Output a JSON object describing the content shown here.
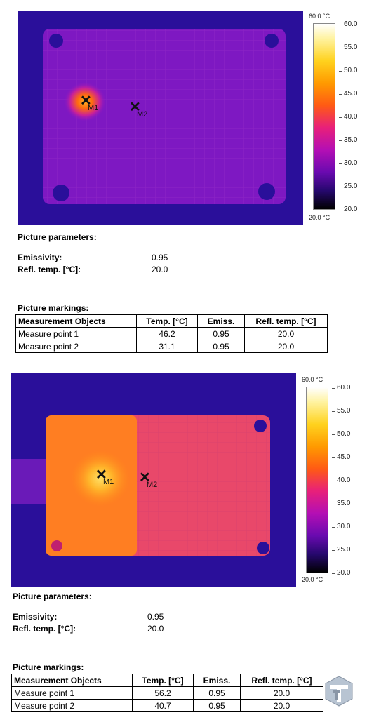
{
  "reports": [
    {
      "scale": {
        "top_label": "60.0 °C",
        "bottom_label": "20.0 °C",
        "ticks": [
          "60.0",
          "55.0",
          "50.0",
          "45.0",
          "40.0",
          "35.0",
          "30.0",
          "25.0",
          "20.0"
        ]
      },
      "markers": [
        {
          "label": "M1"
        },
        {
          "label": "M2"
        }
      ],
      "picture_parameters_title": "Picture parameters:",
      "parameters": [
        {
          "label": "Emissivity:",
          "value": "0.95"
        },
        {
          "label": "Refl. temp. [°C]:",
          "value": "20.0"
        }
      ],
      "picture_markings_title": "Picture markings:",
      "table": {
        "headers": [
          "Measurement Objects",
          "Temp. [°C]",
          "Emiss.",
          "Refl. temp. [°C]"
        ],
        "rows": [
          [
            "Measure point 1",
            "46.2",
            "0.95",
            "20.0"
          ],
          [
            "Measure point 2",
            "31.1",
            "0.95",
            "20.0"
          ]
        ]
      }
    },
    {
      "scale": {
        "top_label": "60.0 °C",
        "bottom_label": "20.0 °C",
        "ticks": [
          "60.0",
          "55.0",
          "50.0",
          "45.0",
          "40.0",
          "35.0",
          "30.0",
          "25.0",
          "20.0"
        ]
      },
      "markers": [
        {
          "label": "M1"
        },
        {
          "label": "M2"
        }
      ],
      "picture_parameters_title": "Picture parameters:",
      "parameters": [
        {
          "label": "Emissivity:",
          "value": "0.95"
        },
        {
          "label": "Refl. temp. [°C]:",
          "value": "20.0"
        }
      ],
      "picture_markings_title": "Picture markings:",
      "table": {
        "headers": [
          "Measurement Objects",
          "Temp. [°C]",
          "Emiss.",
          "Refl. temp. [°C]"
        ],
        "rows": [
          [
            "Measure point 1",
            "56.2",
            "0.95",
            "20.0"
          ],
          [
            "Measure point 2",
            "40.7",
            "0.95",
            "20.0"
          ]
        ]
      }
    }
  ],
  "logo": {
    "icon": "tt-logo-icon"
  }
}
